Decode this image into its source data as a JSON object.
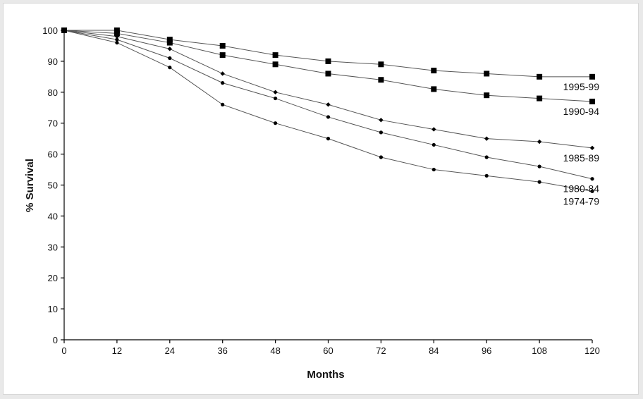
{
  "chart_data": {
    "type": "line",
    "xlabel": "Months",
    "ylabel": "% Survival",
    "xlim": [
      0,
      120
    ],
    "ylim": [
      0,
      100
    ],
    "x_ticks": [
      0,
      12,
      24,
      36,
      48,
      60,
      72,
      84,
      96,
      108,
      120
    ],
    "y_ticks": [
      0,
      10,
      20,
      30,
      40,
      50,
      60,
      70,
      80,
      90,
      100
    ],
    "grid": false,
    "x": [
      0,
      12,
      24,
      36,
      48,
      60,
      72,
      84,
      96,
      108,
      120
    ],
    "series": [
      {
        "name": "1995-99",
        "marker": "square",
        "values": [
          100,
          100,
          97,
          95,
          92,
          90,
          89,
          87,
          86,
          85,
          85
        ]
      },
      {
        "name": "1990-94",
        "marker": "square",
        "values": [
          100,
          99,
          96,
          92,
          89,
          86,
          84,
          81,
          79,
          78,
          77
        ]
      },
      {
        "name": "1985-89",
        "marker": "diamond",
        "values": [
          100,
          98,
          94,
          86,
          80,
          76,
          71,
          68,
          65,
          64,
          62
        ]
      },
      {
        "name": "1980-84",
        "marker": "dot",
        "values": [
          100,
          97,
          91,
          83,
          78,
          72,
          67,
          63,
          59,
          56,
          52
        ]
      },
      {
        "name": "1974-79",
        "marker": "dot",
        "values": [
          100,
          96,
          88,
          76,
          70,
          65,
          59,
          55,
          53,
          51,
          48
        ]
      }
    ],
    "colors": {
      "line": "#555555",
      "marker": "#000000",
      "axis": "#000000"
    }
  }
}
